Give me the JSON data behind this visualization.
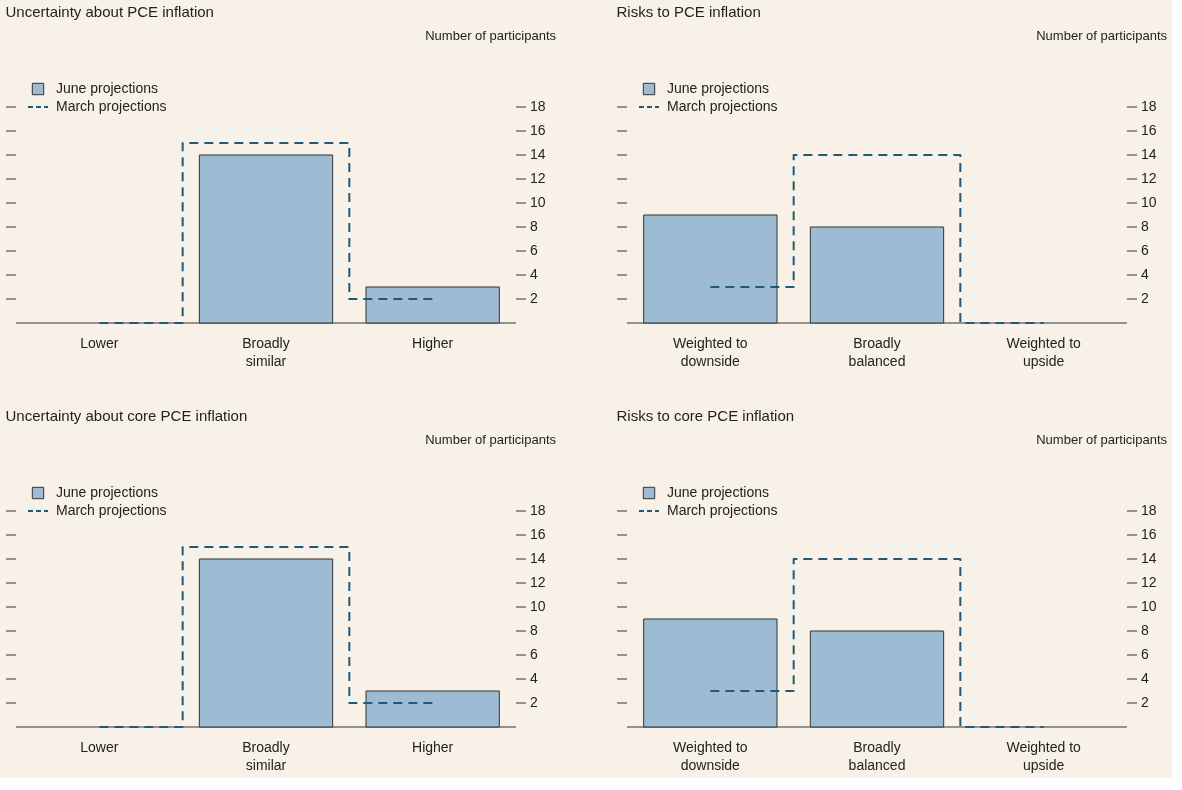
{
  "chart_data": [
    {
      "type": "bar",
      "title": "Uncertainty about PCE inflation",
      "ylabel": "Number of participants",
      "categories": [
        "Lower",
        "Broadly\nsimilar",
        "Higher"
      ],
      "ylim": [
        0,
        20
      ],
      "yticks": [
        2,
        4,
        6,
        8,
        10,
        12,
        14,
        16,
        18
      ],
      "grid": false,
      "legend": "top left",
      "series": [
        {
          "name": "June projections",
          "color": "#9dbbd3",
          "values": [
            0,
            14,
            3
          ]
        },
        {
          "name": "March projections",
          "type": "step",
          "color": "#1f5a7a",
          "line_style": "dashed",
          "values": [
            0,
            15,
            2
          ]
        }
      ]
    },
    {
      "type": "bar",
      "title": "Risks to PCE inflation",
      "ylabel": "Number of participants",
      "categories": [
        "Weighted to\ndownside",
        "Broadly\nbalanced",
        "Weighted to\nupside"
      ],
      "ylim": [
        0,
        20
      ],
      "yticks": [
        2,
        4,
        6,
        8,
        10,
        12,
        14,
        16,
        18
      ],
      "grid": false,
      "legend": "top left",
      "series": [
        {
          "name": "June projections",
          "color": "#9dbbd3",
          "values": [
            9,
            8,
            0
          ]
        },
        {
          "name": "March projections",
          "type": "step",
          "color": "#1f5a7a",
          "line_style": "dashed",
          "values": [
            3,
            14,
            0
          ]
        }
      ]
    },
    {
      "type": "bar",
      "title": "Uncertainty about core PCE inflation",
      "ylabel": "Number of participants",
      "categories": [
        "Lower",
        "Broadly\nsimilar",
        "Higher"
      ],
      "ylim": [
        0,
        20
      ],
      "yticks": [
        2,
        4,
        6,
        8,
        10,
        12,
        14,
        16,
        18
      ],
      "grid": false,
      "legend": "top left",
      "series": [
        {
          "name": "June projections",
          "color": "#9dbbd3",
          "values": [
            0,
            14,
            3
          ]
        },
        {
          "name": "March projections",
          "type": "step",
          "color": "#1f5a7a",
          "line_style": "dashed",
          "values": [
            0,
            15,
            2
          ]
        }
      ]
    },
    {
      "type": "bar",
      "title": "Risks to core PCE inflation",
      "ylabel": "Number of participants",
      "categories": [
        "Weighted to\ndownside",
        "Broadly\nbalanced",
        "Weighted to\nupside"
      ],
      "ylim": [
        0,
        20
      ],
      "yticks": [
        2,
        4,
        6,
        8,
        10,
        12,
        14,
        16,
        18
      ],
      "grid": false,
      "legend": "top left",
      "series": [
        {
          "name": "June projections",
          "color": "#9dbbd3",
          "values": [
            9,
            8,
            0
          ]
        },
        {
          "name": "March projections",
          "type": "step",
          "color": "#1f5a7a",
          "line_style": "dashed",
          "values": [
            3,
            14,
            0
          ]
        }
      ]
    }
  ]
}
